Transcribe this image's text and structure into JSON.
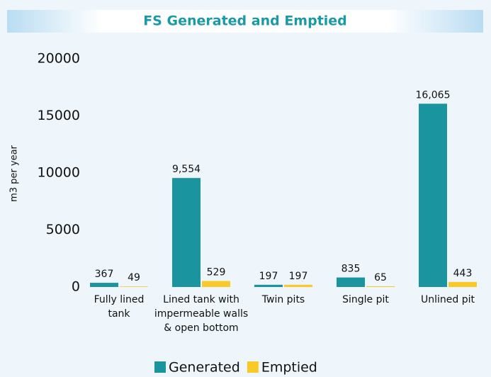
{
  "chart_data": {
    "type": "bar",
    "title": "FS Generated and Emptied",
    "y_label": "m3 per year",
    "categories": [
      [
        "Fully lined",
        "tank"
      ],
      [
        "Lined tank with",
        "impermeable walls",
        "& open bottom"
      ],
      [
        "Twin pits"
      ],
      [
        "Single pit"
      ],
      [
        "Unlined pit"
      ]
    ],
    "series": [
      {
        "name": "Generated",
        "color": "#1a959f",
        "values": [
          367,
          9554,
          197,
          835,
          16065
        ],
        "value_labels": [
          "367",
          "9,554",
          "197",
          "835",
          "16,065"
        ]
      },
      {
        "name": "Emptied",
        "color": "#f9c92a",
        "values": [
          49,
          529,
          197,
          65,
          443
        ],
        "value_labels": [
          "49",
          "529",
          "197",
          "65",
          "443"
        ]
      }
    ],
    "ylim": [
      0,
      20000
    ],
    "yticks": [
      0,
      5000,
      10000,
      15000,
      20000
    ],
    "grid": false,
    "legend": "bottom"
  }
}
